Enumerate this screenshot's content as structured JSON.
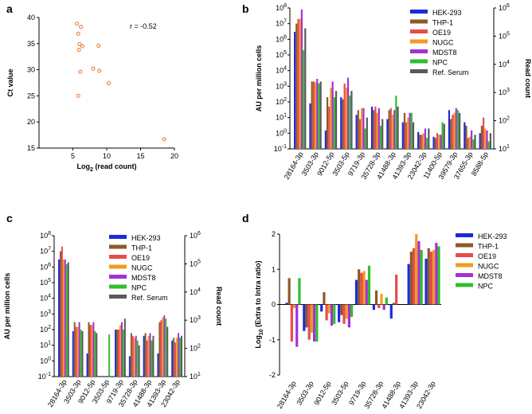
{
  "colors": {
    "HEK-293": "#1c2bd6",
    "THP-1": "#8b5a2b",
    "OE19": "#e84b4b",
    "NUGC": "#f29a22",
    "MDST8": "#a530d6",
    "NPC": "#2fbf2f",
    "Ref. Serum": "#5a5a5a",
    "scatter": "#e8742a"
  },
  "chart_data": [
    {
      "panel": "a",
      "type": "scatter",
      "xlabel_base": "Log",
      "xlabel_sub": "2",
      "xlabel_rest": " (read count)",
      "ylabel": "Ct value",
      "annotation": "r = -0.52",
      "xlim": [
        0,
        20
      ],
      "ylim": [
        15,
        40
      ],
      "xticks": [
        "5",
        "10",
        "15",
        "20"
      ],
      "yticks": [
        "15",
        "20",
        "25",
        "30",
        "35",
        "40"
      ],
      "xtick_values": [
        5,
        10,
        15,
        20
      ],
      "ytick_values": [
        15,
        20,
        25,
        30,
        35,
        40
      ],
      "points": [
        [
          5.6,
          38.8
        ],
        [
          5.8,
          36.9
        ],
        [
          6.2,
          38.2
        ],
        [
          6.0,
          34.9
        ],
        [
          6.4,
          34.5
        ],
        [
          5.9,
          33.8
        ],
        [
          6.1,
          29.6
        ],
        [
          5.8,
          25.0
        ],
        [
          8.0,
          30.2
        ],
        [
          8.8,
          34.6
        ],
        [
          8.9,
          29.8
        ],
        [
          10.3,
          27.4
        ],
        [
          18.5,
          16.7
        ]
      ]
    },
    {
      "panel": "b",
      "type": "bar",
      "scale": "log",
      "ylabel": "AU per million cells",
      "y2label": "Read count",
      "yticks": [
        "10-1",
        "100",
        "101",
        "102",
        "103",
        "104",
        "105",
        "106",
        "107",
        "108"
      ],
      "y2ticks": [
        "101",
        "102",
        "103",
        "104",
        "105",
        "106"
      ],
      "legend": [
        "HEK-293",
        "THP-1",
        "OE19",
        "NUGC",
        "MDST8",
        "NPC",
        "Ref. Serum"
      ],
      "categories": [
        "28164-3p",
        "3503-3p",
        "9012-5p",
        "3503-5p",
        "9719-3p",
        "35728-3p",
        "41488-3p",
        "41393-3p",
        "23042-3p",
        "11400-5p",
        "39579-3p",
        "37655-3p",
        "8588-5p"
      ],
      "series": [
        {
          "name": "HEK-293",
          "values": [
            3000000,
            80,
            1.5,
            200,
            15,
            50,
            8,
            5,
            1.2,
            0.6,
            30,
            5,
            1
          ]
        },
        {
          "name": "THP-1",
          "values": [
            10000000,
            2000,
            200,
            150,
            30,
            30,
            30,
            20,
            0.8,
            0.5,
            8,
            3,
            3
          ]
        },
        {
          "name": "OE19",
          "values": [
            20000000,
            2000,
            50,
            1500,
            8,
            50,
            40,
            5,
            0.8,
            1.0,
            15,
            0.5,
            10
          ]
        },
        {
          "name": "NUGC",
          "values": [
            20000000,
            1800,
            800,
            800,
            40,
            20,
            15,
            10,
            1.0,
            0.8,
            20,
            0.6,
            2
          ]
        },
        {
          "name": "MDST8",
          "values": [
            80000000,
            3000,
            2000,
            3500,
            40,
            40,
            30,
            20,
            2,
            0.8,
            40,
            1.5,
            1.5
          ]
        },
        {
          "name": "NPC",
          "values": [
            200000,
            1500,
            200,
            250,
            2,
            3,
            250,
            20,
            0.5,
            5,
            30,
            0.4,
            0.3
          ]
        },
        {
          "name": "Ref. Serum",
          "values": [
            5000000,
            2000,
            500,
            500,
            10,
            8,
            50,
            5,
            2,
            4,
            20,
            0.8,
            1
          ]
        }
      ]
    },
    {
      "panel": "c",
      "type": "bar",
      "scale": "log",
      "ylabel": "AU per million cells",
      "y2label": "Read count",
      "yticks": [
        "10-1",
        "100",
        "101",
        "102",
        "103",
        "104",
        "105",
        "106",
        "107",
        "108"
      ],
      "y2ticks": [
        "101",
        "102",
        "103",
        "104",
        "105",
        "106"
      ],
      "legend": [
        "HEK-293",
        "THP-1",
        "OE19",
        "NUGC",
        "MDST8",
        "NPC",
        "Ref. Serum"
      ],
      "categories": [
        "28164-3p",
        "3503-3p",
        "9012-5p",
        "3503-5p",
        "9719-3p",
        "35728-3p",
        "41488-3p",
        "41393-3p",
        "23042-3p"
      ],
      "series": [
        {
          "name": "HEK-293",
          "values": [
            3000000,
            80,
            3,
            null,
            100,
            2,
            40,
            3,
            20
          ]
        },
        {
          "name": "THP-1",
          "values": [
            10000000,
            300,
            300,
            null,
            100,
            60,
            60,
            300,
            30
          ]
        },
        {
          "name": "OE19",
          "values": [
            20000000,
            150,
            200,
            null,
            100,
            40,
            20,
            400,
            15
          ]
        },
        {
          "name": "NUGC",
          "values": [
            3000000,
            150,
            200,
            null,
            200,
            30,
            40,
            600,
            30
          ]
        },
        {
          "name": "MDST8",
          "values": [
            3000000,
            300,
            300,
            null,
            300,
            40,
            60,
            800,
            60
          ]
        },
        {
          "name": "NPC",
          "values": [
            1500000,
            100,
            80,
            50,
            100,
            20,
            20,
            500,
            30
          ]
        },
        {
          "name": "Ref. Serum",
          "values": [
            2000000,
            80,
            60,
            null,
            500,
            10,
            40,
            150,
            40
          ]
        }
      ]
    },
    {
      "panel": "d",
      "type": "bar",
      "scale": "linear",
      "ylabel_base": "Log",
      "ylabel_sub": "10",
      "ylabel_rest": " (Extra to Intra ratio)",
      "ylim": [
        -2,
        2
      ],
      "yticks": [
        "-2",
        "-1",
        "0",
        "1",
        "2"
      ],
      "legend": [
        "HEK-293",
        "THP-1",
        "OE19",
        "NUGC",
        "MDST8",
        "NPC"
      ],
      "categories": [
        "28164-3p",
        "3503-3p",
        "9012-5p",
        "3503-5p",
        "9719-3p",
        "35728-3p",
        "41488-3p",
        "41393-3p",
        "23042-3p"
      ],
      "series": [
        {
          "name": "HEK-293",
          "values": [
            0.05,
            -0.75,
            -0.2,
            -0.5,
            0.7,
            -0.15,
            -0.4,
            1.15,
            1.3
          ]
        },
        {
          "name": "THP-1",
          "values": [
            0.75,
            -0.65,
            0.35,
            -0.3,
            1.0,
            0.4,
            0.05,
            1.5,
            1.6
          ]
        },
        {
          "name": "OE19",
          "values": [
            -1.05,
            -1.0,
            -0.45,
            -0.55,
            0.9,
            -0.1,
            0.85,
            1.6,
            1.5
          ]
        },
        {
          "name": "NUGC",
          "values": [
            -0.1,
            -0.8,
            -0.25,
            -0.4,
            0.95,
            0.3,
            null,
            2.0,
            1.55
          ]
        },
        {
          "name": "MDST8",
          "values": [
            -1.2,
            -1.05,
            -0.6,
            -0.65,
            0.7,
            -0.15,
            null,
            1.8,
            1.75
          ]
        },
        {
          "name": "NPC",
          "values": [
            0.75,
            -1.05,
            -0.55,
            -0.35,
            1.1,
            0.2,
            null,
            1.55,
            1.65
          ]
        }
      ]
    }
  ],
  "labels": {
    "a": "a",
    "b": "b",
    "c": "c",
    "d": "d"
  }
}
